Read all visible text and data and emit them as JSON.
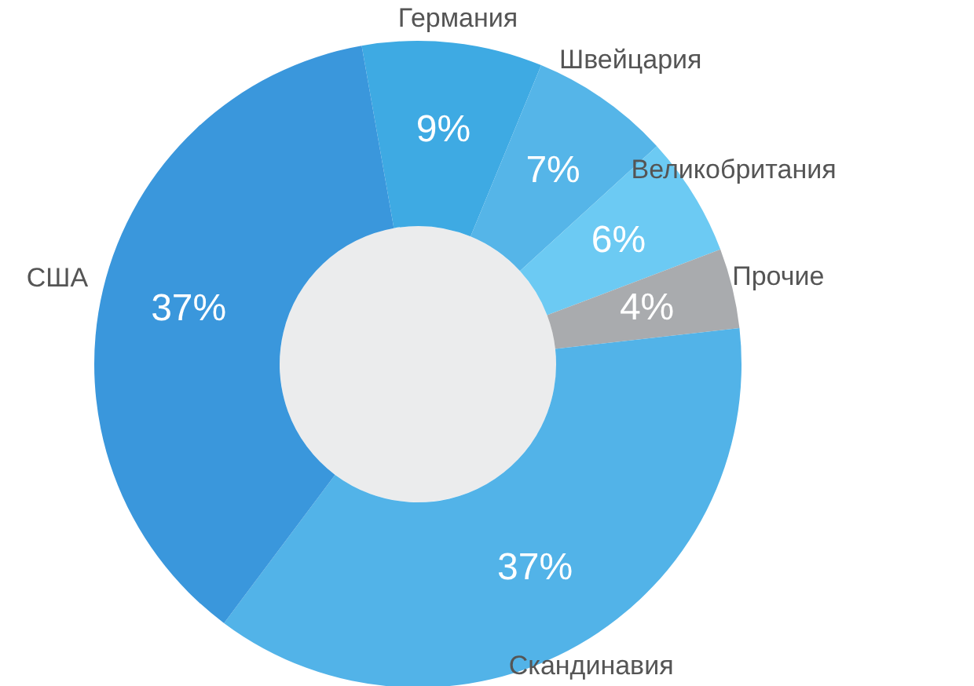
{
  "chart_data": {
    "type": "donut",
    "categories": [
      "Германия",
      "Швейцария",
      "Великобритания",
      "Прочие",
      "Скандинавия",
      "США"
    ],
    "values": [
      9,
      7,
      6,
      4,
      37,
      37
    ],
    "value_labels": [
      "9%",
      "7%",
      "6%",
      "4%",
      "37%",
      "37%"
    ],
    "colors": [
      "#3eaae3",
      "#55b5e8",
      "#6ccaf3",
      "#a9abae",
      "#52b3e8",
      "#3a97dc"
    ]
  }
}
